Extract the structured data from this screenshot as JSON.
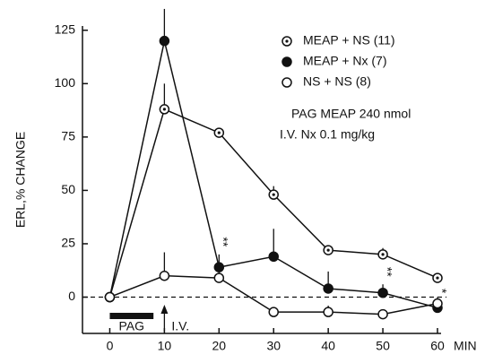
{
  "chart_data": {
    "type": "line",
    "x": [
      0,
      10,
      20,
      30,
      40,
      50,
      60
    ],
    "xlim": [
      -5,
      60
    ],
    "xticks": [
      0,
      10,
      20,
      30,
      40,
      50,
      60
    ],
    "xlabel": "MIN",
    "ylim": [
      -17,
      127
    ],
    "yticks": [
      0,
      25,
      50,
      75,
      100,
      125
    ],
    "ylabel": "ERL,% CHANGE",
    "reference_line": 0,
    "series": [
      {
        "name": "MEAP + NS (11)",
        "marker": "dotted",
        "color": "#111111",
        "values": [
          0,
          88,
          77,
          48,
          22,
          20,
          9
        ],
        "errors": [
          0,
          12,
          2,
          4,
          2,
          3,
          2
        ]
      },
      {
        "name": "MEAP + Nx (7)",
        "marker": "filled",
        "color": "#111111",
        "values": [
          0,
          120,
          14,
          19,
          4,
          2,
          -5
        ],
        "errors": [
          0,
          15,
          6,
          13,
          8,
          4,
          2
        ]
      },
      {
        "name": "NS + NS (8)",
        "marker": "open",
        "color": "#111111",
        "values": [
          0,
          10,
          9,
          -7,
          -7,
          -8,
          -3
        ],
        "errors": [
          0,
          11,
          3,
          1,
          3,
          1,
          3
        ]
      }
    ],
    "annotations": [
      "PAG MEAP 240 nmol",
      "I.V. Nx 0.1 mg/kg"
    ],
    "significance": [
      {
        "label": "**",
        "x": 20
      },
      {
        "label": "**",
        "x": 50
      },
      {
        "label": "*",
        "x": 60
      }
    ],
    "pag_bar": {
      "label": "PAG",
      "x": [
        0,
        8
      ]
    },
    "iv_arrow": {
      "label": "I.V.",
      "x": 10
    }
  }
}
